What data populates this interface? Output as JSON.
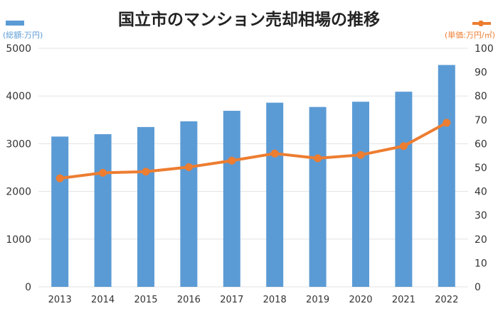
{
  "chart_data": {
    "type": "bar+line",
    "title": "国立市のマンション売却相場の推移",
    "categories": [
      "2013",
      "2014",
      "2015",
      "2016",
      "2017",
      "2018",
      "2019",
      "2020",
      "2021",
      "2022"
    ],
    "series": [
      {
        "name": "(総額:万円)",
        "type": "bar",
        "axis": "left",
        "color": "#5b9bd5",
        "values": [
          3150,
          3200,
          3350,
          3470,
          3690,
          3860,
          3770,
          3880,
          4090,
          4650
        ]
      },
      {
        "name": "(単価:万円/㎡)",
        "type": "line",
        "axis": "right",
        "color": "#ed7d31",
        "values": [
          45.5,
          47.8,
          48.3,
          50.2,
          52.9,
          55.9,
          53.9,
          55.3,
          59.0,
          68.8
        ]
      }
    ],
    "y_left": {
      "ylim": [
        0,
        5000
      ],
      "ticks": [
        "0",
        "1000",
        "2000",
        "3000",
        "4000",
        "5000"
      ]
    },
    "y_right": {
      "ylim": [
        0,
        100
      ],
      "ticks": [
        "0",
        "10",
        "20",
        "30",
        "40",
        "50",
        "60",
        "70",
        "80",
        "90",
        "100"
      ]
    },
    "grid": true,
    "legend": "top-left and top-right"
  }
}
